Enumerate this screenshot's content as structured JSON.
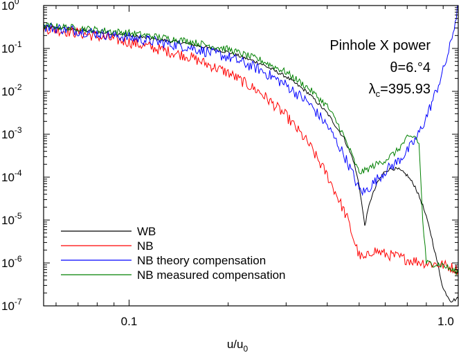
{
  "chart_data": {
    "type": "line",
    "x_scale": "log",
    "y_scale": "log",
    "xlim": [
      0.055,
      1.0
    ],
    "ylim": [
      1e-07,
      1
    ],
    "grid": false,
    "legend_placement": "lower-left",
    "xlabel": {
      "base": "u/u",
      "sub": "0"
    },
    "x_ticks": [
      {
        "value": 0.1,
        "label": "0.1"
      },
      {
        "value": 1.0,
        "label": "1.0"
      }
    ],
    "y_ticks": [
      {
        "value": 1,
        "base": "10",
        "exp": "0"
      },
      {
        "value": 0.1,
        "base": "10",
        "exp": "-1"
      },
      {
        "value": 0.01,
        "base": "10",
        "exp": "-2"
      },
      {
        "value": 0.001,
        "base": "10",
        "exp": "-3"
      },
      {
        "value": 0.0001,
        "base": "10",
        "exp": "-4"
      },
      {
        "value": 1e-05,
        "base": "10",
        "exp": "-5"
      },
      {
        "value": 1e-06,
        "base": "10",
        "exp": "-6"
      },
      {
        "value": 1e-07,
        "base": "10",
        "exp": "-7"
      }
    ],
    "annotations": {
      "line1": "Pinhole X power",
      "line2": "θ=6.°4",
      "line3_symbol": "λ",
      "line3_sub": "c",
      "line3_rest": "=395.93"
    },
    "series": [
      {
        "name": "WB",
        "color": "#000000",
        "noise": 0.04,
        "x": [
          0.055,
          0.07,
          0.1,
          0.15,
          0.2,
          0.25,
          0.3,
          0.35,
          0.4,
          0.45,
          0.48,
          0.5,
          0.52,
          0.54,
          0.57,
          0.6,
          0.63,
          0.66,
          0.7,
          0.74,
          0.78,
          0.82,
          0.86,
          0.9,
          0.95,
          1.0
        ],
        "y": [
          0.32,
          0.27,
          0.2,
          0.13,
          0.082,
          0.045,
          0.022,
          0.0092,
          0.0031,
          0.0008,
          0.00025,
          6.5e-05,
          7.5e-06,
          2.8e-05,
          7.8e-05,
          0.00014,
          0.00016,
          0.00015,
          0.00011,
          6e-05,
          2.2e-05,
          6e-06,
          1.2e-06,
          2.5e-07,
          1.3e-07,
          1.5e-07
        ]
      },
      {
        "name": "NB",
        "color": "#ff0000",
        "noise": 0.13,
        "x": [
          0.055,
          0.07,
          0.1,
          0.15,
          0.2,
          0.25,
          0.3,
          0.35,
          0.4,
          0.43,
          0.46,
          0.48,
          0.5,
          0.52,
          0.55,
          0.6,
          0.65,
          0.7,
          0.8,
          0.9,
          1.0
        ],
        "y": [
          0.3,
          0.23,
          0.14,
          0.067,
          0.027,
          0.0095,
          0.0027,
          0.00062,
          0.00011,
          3.5e-05,
          1.1e-05,
          3.8e-06,
          1.5e-06,
          1.2e-06,
          2e-06,
          1.6e-06,
          1.4e-06,
          1.2e-06,
          1e-06,
          9e-07,
          7e-07
        ]
      },
      {
        "name": "NB theory compensation",
        "color": "#0000ff",
        "noise": 0.13,
        "x": [
          0.055,
          0.07,
          0.1,
          0.15,
          0.2,
          0.25,
          0.3,
          0.35,
          0.4,
          0.45,
          0.48,
          0.5,
          0.52,
          0.55,
          0.6,
          0.65,
          0.7,
          0.75,
          0.8,
          0.85,
          0.9,
          0.95,
          0.98,
          1.0
        ],
        "y": [
          0.32,
          0.26,
          0.18,
          0.11,
          0.063,
          0.032,
          0.014,
          0.0055,
          0.0016,
          0.00033,
          0.00011,
          5e-05,
          4.5e-05,
          7e-05,
          0.00014,
          0.00022,
          0.0004,
          0.00085,
          0.0025,
          0.0085,
          0.03,
          0.13,
          0.45,
          1.0
        ]
      },
      {
        "name": "NB measured compensation",
        "color": "#008000",
        "noise": 0.08,
        "x": [
          0.055,
          0.07,
          0.1,
          0.15,
          0.2,
          0.25,
          0.3,
          0.35,
          0.4,
          0.44,
          0.47,
          0.49,
          0.5,
          0.52,
          0.55,
          0.6,
          0.65,
          0.7,
          0.74,
          0.76,
          0.78,
          0.8,
          0.85,
          0.9,
          0.95,
          1.0
        ],
        "y": [
          0.34,
          0.3,
          0.23,
          0.15,
          0.096,
          0.054,
          0.028,
          0.012,
          0.0045,
          0.0013,
          0.0004,
          0.00018,
          0.00013,
          0.00014,
          0.00018,
          0.00025,
          0.0004,
          0.0008,
          0.0009,
          0.0006,
          1e-05,
          1e-06,
          9.5e-07,
          9e-07,
          7e-07,
          6e-07
        ]
      }
    ]
  }
}
